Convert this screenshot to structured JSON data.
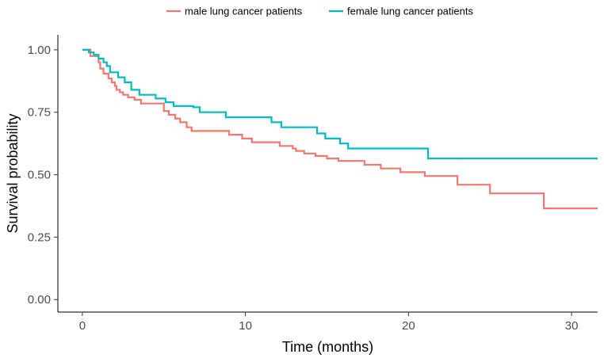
{
  "chart_data": {
    "type": "line",
    "title": "",
    "xlabel": "Time (months)",
    "ylabel": "Survival probability",
    "xlim": [
      -1.5,
      31.6
    ],
    "ylim": [
      -0.05,
      1.06
    ],
    "xticks": [
      0,
      10,
      20,
      30
    ],
    "xtick_labels": [
      "0",
      "10",
      "20",
      "30"
    ],
    "yticks": [
      0,
      0.25,
      0.5,
      0.75,
      1
    ],
    "ytick_labels": [
      "0.00",
      "0.25",
      "0.50",
      "0.75",
      "1.00"
    ],
    "grid": false,
    "legend_position": "top",
    "series": [
      {
        "name": "male lung cancer patients",
        "color": "#F8766D",
        "step": true,
        "x": [
          0,
          0.5,
          1.0,
          1.1,
          1.3,
          1.6,
          1.8,
          2.0,
          2.1,
          2.3,
          2.5,
          2.8,
          3.2,
          3.6,
          5.0,
          5.3,
          5.7,
          6.0,
          6.4,
          6.7,
          9.0,
          9.8,
          10.4,
          12.1,
          12.9,
          13.1,
          13.6,
          14.3,
          15.0,
          15.7,
          17.3,
          18.3,
          19.5,
          21.0,
          23.0,
          25.0,
          28.3,
          31.6
        ],
        "y": [
          1.0,
          0.975,
          0.95,
          0.925,
          0.905,
          0.885,
          0.87,
          0.855,
          0.84,
          0.83,
          0.82,
          0.81,
          0.8,
          0.785,
          0.755,
          0.74,
          0.725,
          0.71,
          0.69,
          0.675,
          0.66,
          0.645,
          0.63,
          0.615,
          0.605,
          0.595,
          0.585,
          0.575,
          0.565,
          0.555,
          0.54,
          0.525,
          0.51,
          0.495,
          0.46,
          0.425,
          0.365,
          0.365
        ]
      },
      {
        "name": "female lung cancer patients",
        "color": "#00BFC4",
        "step": true,
        "x": [
          0,
          0.4,
          0.7,
          1.0,
          1.3,
          1.5,
          1.7,
          2.2,
          2.6,
          3.0,
          3.5,
          4.5,
          5.1,
          5.6,
          6.8,
          7.2,
          8.8,
          11.6,
          12.2,
          14.4,
          14.9,
          15.8,
          16.3,
          17.0,
          21.2,
          31.6
        ],
        "y": [
          1.0,
          0.99,
          0.98,
          0.965,
          0.95,
          0.935,
          0.91,
          0.89,
          0.87,
          0.84,
          0.82,
          0.805,
          0.79,
          0.775,
          0.77,
          0.75,
          0.73,
          0.71,
          0.69,
          0.665,
          0.645,
          0.625,
          0.605,
          0.605,
          0.565,
          0.565
        ]
      }
    ]
  }
}
